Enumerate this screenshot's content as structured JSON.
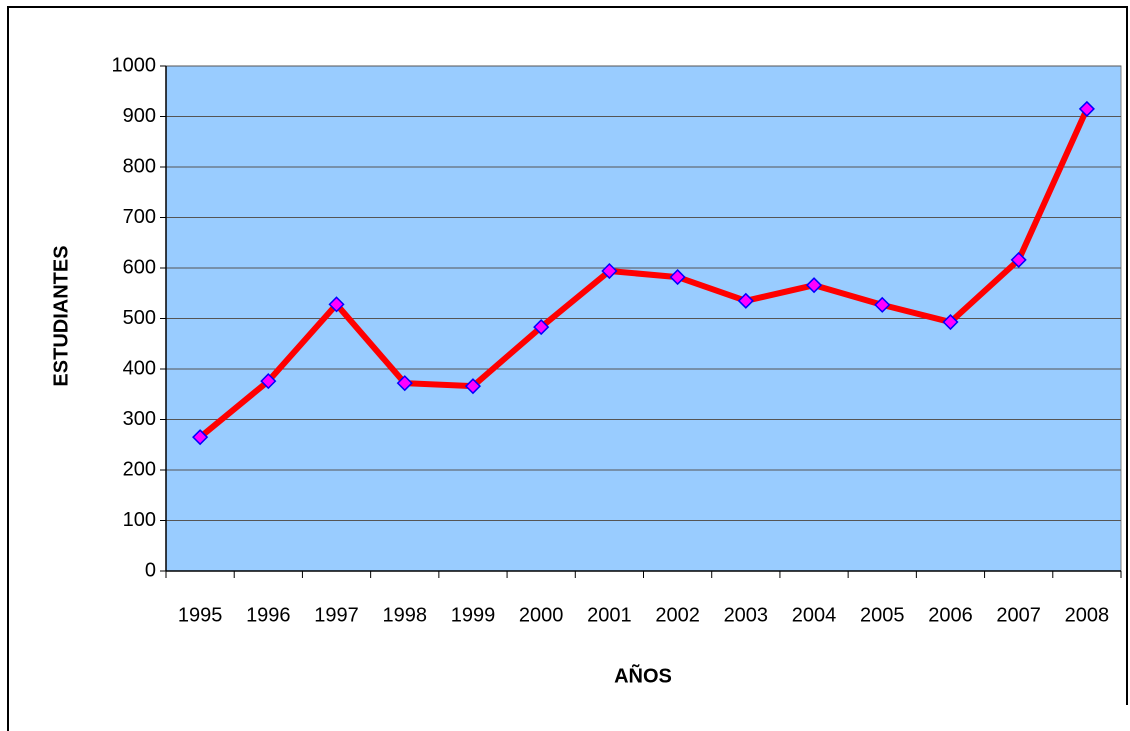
{
  "chart_data": {
    "type": "line",
    "xlabel": "AÑOS",
    "ylabel": "ESTUDIANTES",
    "categories": [
      "1995",
      "1996",
      "1997",
      "1998",
      "1999",
      "2000",
      "2001",
      "2002",
      "2003",
      "2004",
      "2005",
      "2006",
      "2007",
      "2008"
    ],
    "series": [
      {
        "color": "#ff0000",
        "marker_color": "#ff00ff",
        "marker_edge": "#0000ff",
        "values": [
          265,
          376,
          528,
          372,
          366,
          483,
          594,
          582,
          535,
          566,
          527,
          493,
          616,
          915
        ]
      }
    ],
    "ylim": [
      0,
      1000
    ],
    "yticks": [
      0,
      100,
      200,
      300,
      400,
      500,
      600,
      700,
      800,
      900,
      1000
    ],
    "grid": true,
    "background": "#99ccff"
  }
}
